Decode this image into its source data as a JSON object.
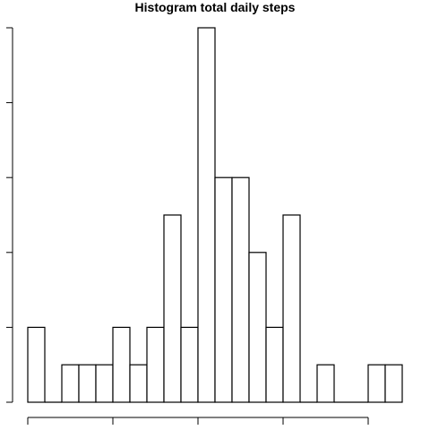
{
  "chart_data": {
    "type": "bar",
    "title": "Histogram total daily steps",
    "xlabel": "",
    "ylabel": "",
    "bins": 22,
    "counts": [
      2,
      0,
      1,
      1,
      1,
      2,
      1,
      2,
      5,
      2,
      10,
      6,
      6,
      4,
      2,
      5,
      0,
      1,
      0,
      0,
      1,
      1
    ],
    "ylim": [
      0,
      10
    ],
    "y_ticks_shown": 6,
    "x_ticks_shown": 5,
    "tick_labels_visible": false,
    "grid": false,
    "bar_fill": "#ffffff",
    "bar_stroke": "#000000"
  }
}
